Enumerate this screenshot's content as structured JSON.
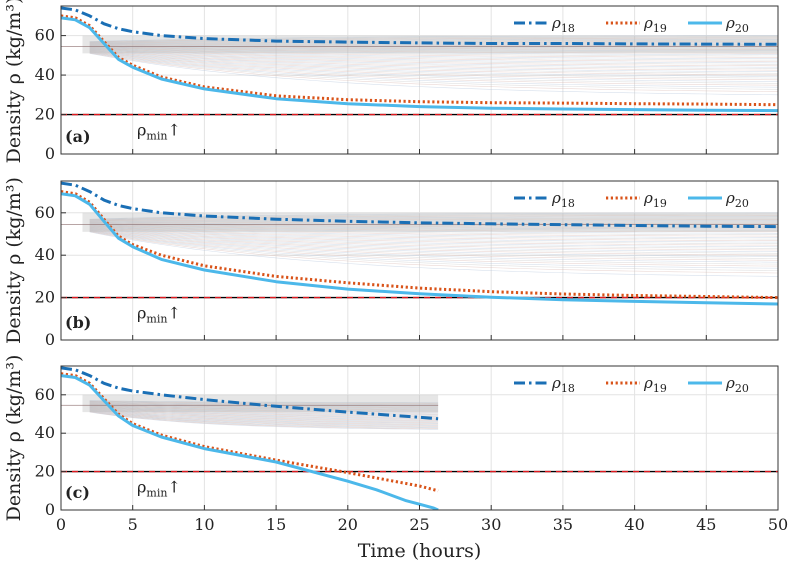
{
  "chart_data": [
    {
      "type": "line",
      "panel": "(a)",
      "xlim": [
        0,
        50
      ],
      "ylim": [
        0,
        75
      ],
      "x_ticks": [
        0,
        5,
        10,
        15,
        20,
        25,
        30,
        35,
        40,
        45,
        50
      ],
      "y_ticks": [
        0,
        20,
        40,
        60
      ],
      "ylabel": "Density ρ (kg/m³)",
      "grid": true,
      "legend": "top-right",
      "threshold": {
        "label": "ρmin↑",
        "value": 20
      },
      "series": [
        {
          "name": "ρ18",
          "style": "dash-dot",
          "color": "#1a6fb5",
          "x": [
            0,
            1,
            2,
            3,
            4,
            5,
            7,
            10,
            15,
            20,
            25,
            30,
            35,
            40,
            45,
            50
          ],
          "y": [
            74,
            73,
            70,
            66,
            63.5,
            62,
            60,
            58.5,
            57.2,
            56.7,
            56.3,
            56,
            56,
            55.8,
            55.7,
            55.6
          ]
        },
        {
          "name": "ρ19",
          "style": "dotted",
          "color": "#d95319",
          "x": [
            0,
            1,
            2,
            3,
            4,
            5,
            7,
            10,
            15,
            20,
            25,
            30,
            35,
            40,
            45,
            50
          ],
          "y": [
            70,
            69,
            65,
            57,
            49,
            45,
            39,
            34,
            29.5,
            27.5,
            26.5,
            26,
            25.8,
            25.5,
            25.3,
            25
          ]
        },
        {
          "name": "ρ20",
          "style": "solid",
          "color": "#4cb8ea",
          "x": [
            0,
            1,
            2,
            3,
            4,
            5,
            7,
            10,
            15,
            20,
            25,
            30,
            35,
            40,
            45,
            50
          ],
          "y": [
            69,
            68,
            64,
            56,
            48,
            44,
            38,
            33,
            28,
            25.5,
            24,
            23.2,
            22.8,
            22.5,
            22.2,
            22
          ]
        }
      ]
    },
    {
      "type": "line",
      "panel": "(b)",
      "xlim": [
        0,
        50
      ],
      "ylim": [
        0,
        75
      ],
      "x_ticks": [
        0,
        5,
        10,
        15,
        20,
        25,
        30,
        35,
        40,
        45,
        50
      ],
      "y_ticks": [
        0,
        20,
        40,
        60
      ],
      "ylabel": "Density ρ (kg/m³)",
      "grid": true,
      "legend": "top-right",
      "threshold": {
        "label": "ρmin↑",
        "value": 20
      },
      "series": [
        {
          "name": "ρ18",
          "style": "dash-dot",
          "color": "#1a6fb5",
          "x": [
            0,
            1,
            2,
            3,
            4,
            5,
            7,
            10,
            15,
            20,
            25,
            30,
            35,
            40,
            45,
            50
          ],
          "y": [
            74,
            73,
            70,
            66,
            63.5,
            62,
            60,
            58.5,
            57,
            56,
            55.3,
            54.8,
            54.4,
            54,
            53.7,
            53.5
          ]
        },
        {
          "name": "ρ19",
          "style": "dotted",
          "color": "#d95319",
          "x": [
            0,
            1,
            2,
            3,
            4,
            5,
            7,
            10,
            15,
            20,
            25,
            30,
            35,
            40,
            45,
            50
          ],
          "y": [
            70,
            69,
            65,
            57,
            49,
            45,
            40,
            35,
            30,
            27,
            24.5,
            22.8,
            21.7,
            21,
            20.5,
            20
          ]
        },
        {
          "name": "ρ20",
          "style": "solid",
          "color": "#4cb8ea",
          "x": [
            0,
            1,
            2,
            3,
            4,
            5,
            7,
            10,
            15,
            20,
            25,
            30,
            35,
            40,
            45,
            50
          ],
          "y": [
            69,
            68,
            64,
            56,
            48,
            44,
            38,
            33,
            27.5,
            24,
            21.8,
            20.2,
            19,
            18.2,
            17.6,
            17
          ]
        }
      ]
    },
    {
      "type": "line",
      "panel": "(c)",
      "xlim": [
        0,
        50
      ],
      "ylim": [
        0,
        75
      ],
      "x_ticks": [
        0,
        5,
        10,
        15,
        20,
        25,
        30,
        35,
        40,
        45,
        50
      ],
      "y_ticks": [
        0,
        20,
        40,
        60
      ],
      "xlabel": "Time (hours)",
      "ylabel": "Density ρ (kg/m³)",
      "grid": true,
      "legend": "top-right",
      "threshold": {
        "label": "ρmin↑",
        "value": 20
      },
      "series": [
        {
          "name": "ρ18",
          "style": "dash-dot",
          "color": "#1a6fb5",
          "x": [
            0,
            1,
            2,
            3,
            4,
            5,
            7,
            10,
            15,
            20,
            25,
            26.3
          ],
          "y": [
            74,
            73,
            70,
            66,
            63.5,
            62,
            60,
            57.5,
            54,
            51,
            48.3,
            47.5
          ]
        },
        {
          "name": "ρ19",
          "style": "dotted",
          "color": "#d95319",
          "x": [
            0,
            1,
            2,
            3,
            4,
            5,
            7,
            10,
            15,
            20,
            25,
            26.3
          ],
          "y": [
            71,
            70,
            66,
            58,
            50,
            45,
            39,
            33,
            26,
            19.5,
            12.5,
            10
          ]
        },
        {
          "name": "ρ20",
          "style": "solid",
          "color": "#4cb8ea",
          "x": [
            0,
            1,
            2,
            3,
            4,
            5,
            7,
            10,
            15,
            20,
            22,
            24,
            25,
            26,
            26.3
          ],
          "y": [
            70,
            69,
            65,
            57,
            49,
            44,
            38,
            32,
            25,
            15,
            10.5,
            5,
            3,
            1,
            0
          ]
        }
      ]
    }
  ]
}
